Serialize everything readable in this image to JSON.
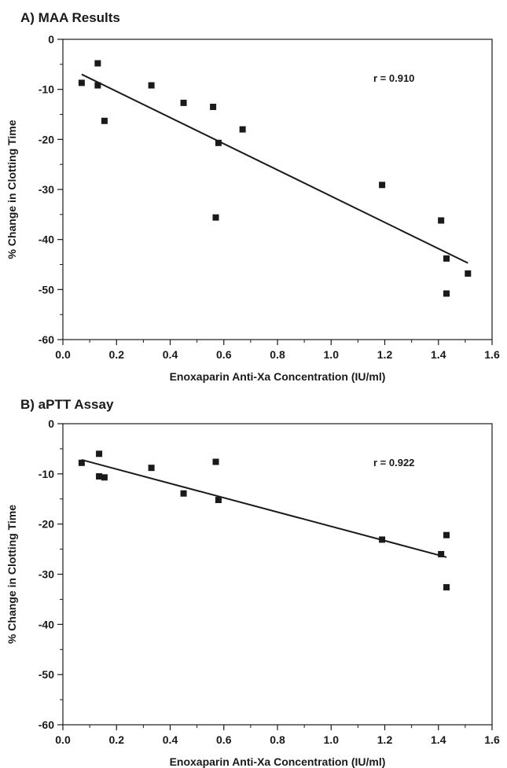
{
  "chart_data": [
    {
      "type": "scatter",
      "title": "A) MAA Results",
      "xlabel": "Enoxaparin Anti-Xa Concentration (IU/ml)",
      "ylabel": "% Change in Clotting Time",
      "xlim": [
        0.0,
        1.6
      ],
      "ylim": [
        -60,
        0
      ],
      "xticks": [
        "0.0",
        "0.2",
        "0.4",
        "0.6",
        "0.8",
        "1.0",
        "1.2",
        "1.4",
        "1.6"
      ],
      "yticks": [
        "0",
        "-10",
        "-20",
        "-30",
        "-40",
        "-50",
        "-60"
      ],
      "grid": false,
      "annotation": "r = 0.910",
      "points": [
        {
          "x": 0.07,
          "y": -8.7
        },
        {
          "x": 0.13,
          "y": -4.8
        },
        {
          "x": 0.13,
          "y": -9.2
        },
        {
          "x": 0.155,
          "y": -16.3
        },
        {
          "x": 0.33,
          "y": -9.2
        },
        {
          "x": 0.45,
          "y": -12.7
        },
        {
          "x": 0.56,
          "y": -13.5
        },
        {
          "x": 0.57,
          "y": -35.6
        },
        {
          "x": 0.58,
          "y": -20.7
        },
        {
          "x": 0.67,
          "y": -18.0
        },
        {
          "x": 1.19,
          "y": -29.1
        },
        {
          "x": 1.41,
          "y": -36.2
        },
        {
          "x": 1.43,
          "y": -43.8
        },
        {
          "x": 1.43,
          "y": -50.8
        },
        {
          "x": 1.51,
          "y": -46.8
        }
      ],
      "trendline": {
        "x": [
          0.07,
          1.51
        ],
        "y": [
          -7.0,
          -44.7
        ]
      }
    },
    {
      "type": "scatter",
      "title": "B) aPTT Assay",
      "xlabel": "Enoxaparin Anti-Xa Concentration (IU/ml)",
      "ylabel": "% Change in Clotting Time",
      "xlim": [
        0.0,
        1.6
      ],
      "ylim": [
        -60,
        0
      ],
      "xticks": [
        "0.0",
        "0.2",
        "0.4",
        "0.6",
        "0.8",
        "1.0",
        "1.2",
        "1.4",
        "1.6"
      ],
      "yticks": [
        "0",
        "-10",
        "-20",
        "-30",
        "-40",
        "-50",
        "-60"
      ],
      "grid": false,
      "annotation": "r = 0.922",
      "points": [
        {
          "x": 0.07,
          "y": -7.8
        },
        {
          "x": 0.135,
          "y": -6.0
        },
        {
          "x": 0.135,
          "y": -10.5
        },
        {
          "x": 0.155,
          "y": -10.7
        },
        {
          "x": 0.33,
          "y": -8.8
        },
        {
          "x": 0.45,
          "y": -13.9
        },
        {
          "x": 0.57,
          "y": -7.6
        },
        {
          "x": 0.58,
          "y": -15.2
        },
        {
          "x": 1.19,
          "y": -23.1
        },
        {
          "x": 1.41,
          "y": -26.0
        },
        {
          "x": 1.43,
          "y": -22.2
        },
        {
          "x": 1.43,
          "y": -32.6
        }
      ],
      "trendline": {
        "x": [
          0.07,
          1.43
        ],
        "y": [
          -7.2,
          -26.6
        ]
      }
    }
  ]
}
